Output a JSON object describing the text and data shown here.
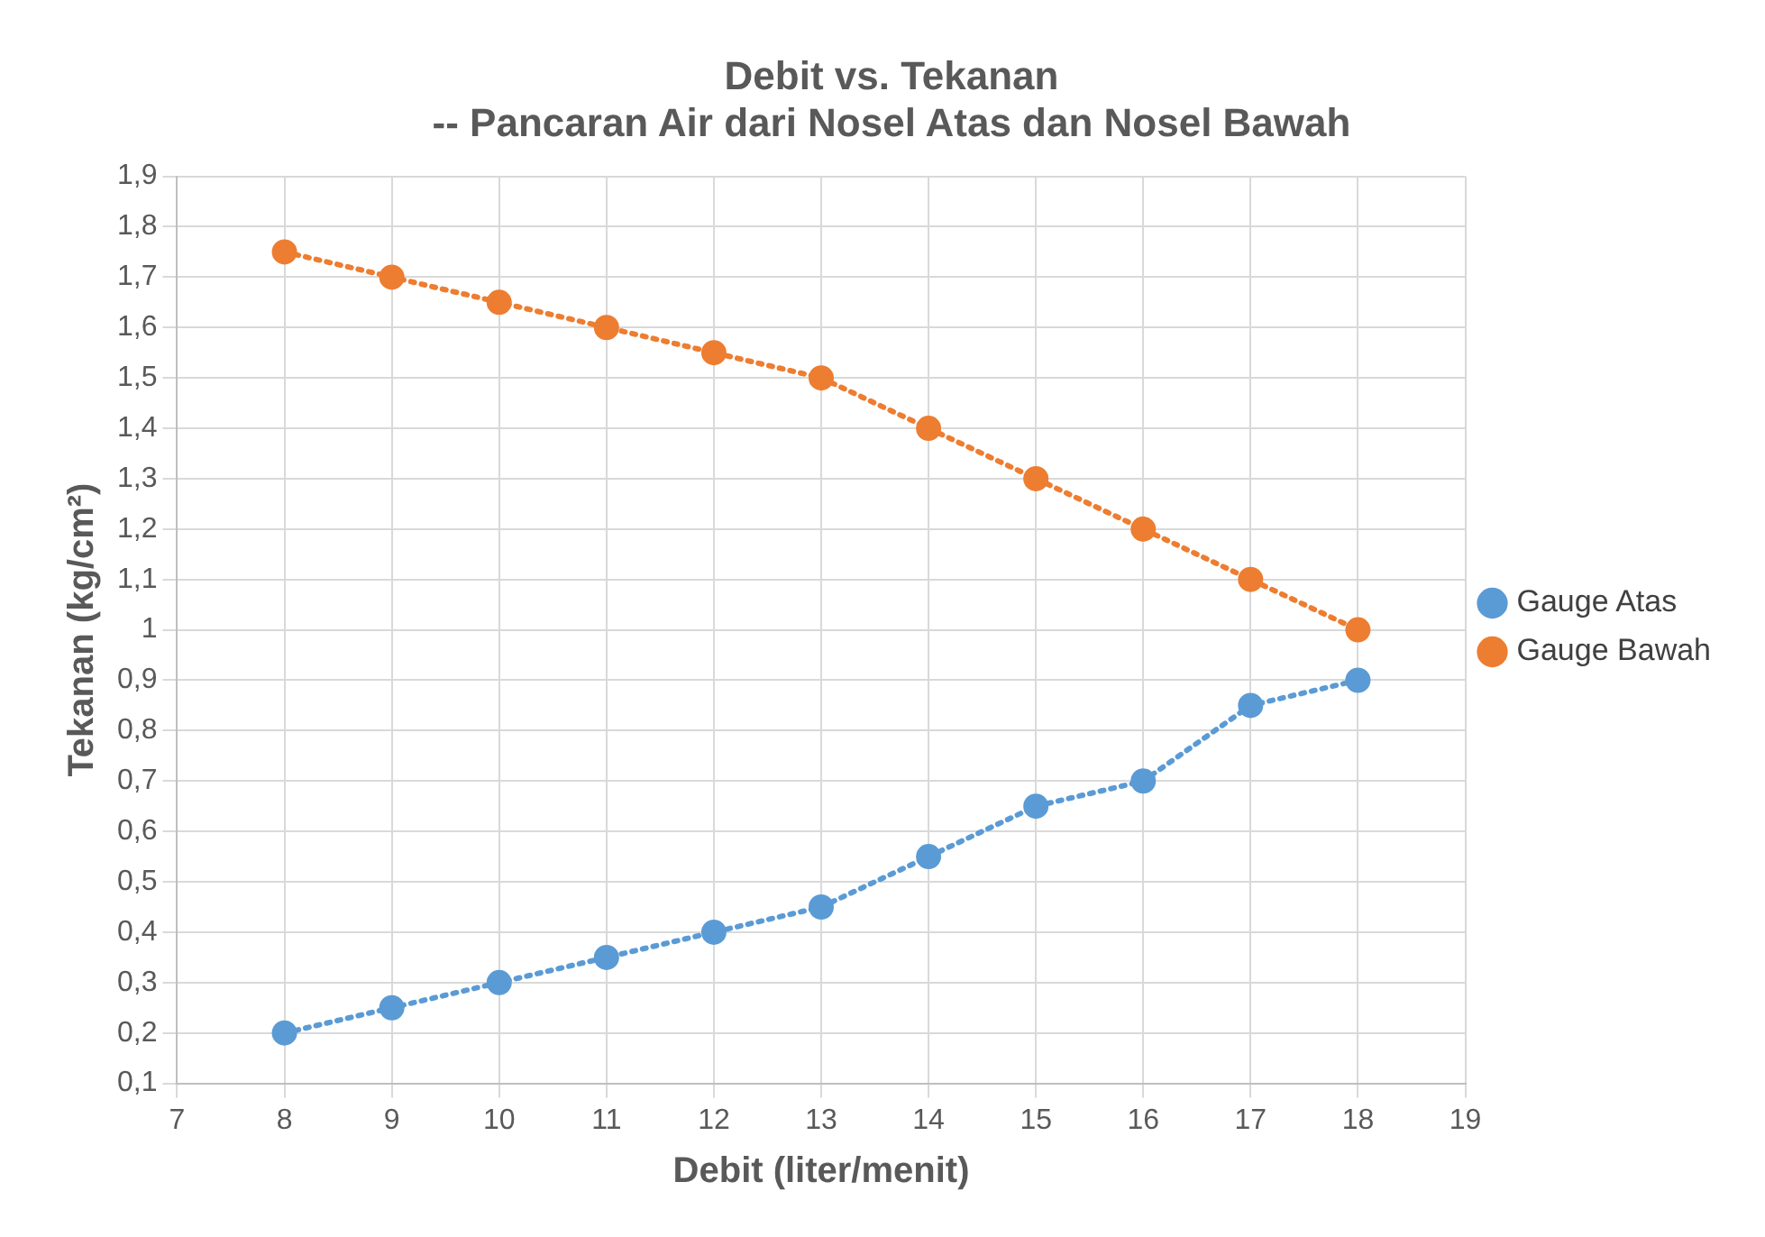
{
  "chart_data": {
    "type": "line",
    "title": "Debit vs. Tekanan",
    "subtitle": "-- Pancaran Air dari Nosel Atas dan Nosel Bawah",
    "xlabel": "Debit (liter/menit)",
    "ylabel": "Tekanan (kg/cm²)",
    "x": [
      8,
      9,
      10,
      11,
      12,
      13,
      14,
      15,
      16,
      17,
      18
    ],
    "series": [
      {
        "name": "Gauge Atas",
        "color": "#5b9bd5",
        "values": [
          0.2,
          0.25,
          0.3,
          0.35,
          0.4,
          0.45,
          0.55,
          0.65,
          0.7,
          0.85,
          0.9
        ]
      },
      {
        "name": "Gauge Bawah",
        "color": "#ed7d31",
        "values": [
          1.75,
          1.7,
          1.65,
          1.6,
          1.55,
          1.5,
          1.4,
          1.3,
          1.2,
          1.1,
          1.0
        ]
      }
    ],
    "xlim": [
      7,
      19
    ],
    "xticks": [
      7,
      8,
      9,
      10,
      11,
      12,
      13,
      14,
      15,
      16,
      17,
      18,
      19
    ],
    "ylim": [
      0.1,
      1.9
    ],
    "yticks": [
      {
        "value": 0.1,
        "label": "0,1"
      },
      {
        "value": 0.2,
        "label": "0,2"
      },
      {
        "value": 0.3,
        "label": "0,3"
      },
      {
        "value": 0.4,
        "label": "0,4"
      },
      {
        "value": 0.5,
        "label": "0,5"
      },
      {
        "value": 0.6,
        "label": "0,6"
      },
      {
        "value": 0.7,
        "label": "0,7"
      },
      {
        "value": 0.8,
        "label": "0,8"
      },
      {
        "value": 0.9,
        "label": "0,9"
      },
      1,
      {
        "value": 1.1,
        "label": "1,1"
      },
      {
        "value": 1.2,
        "label": "1,2"
      },
      {
        "value": 1.3,
        "label": "1,3"
      },
      {
        "value": 1.4,
        "label": "1,4"
      },
      {
        "value": 1.5,
        "label": "1,5"
      },
      {
        "value": 1.6,
        "label": "1,6"
      },
      {
        "value": 1.7,
        "label": "1,7"
      },
      {
        "value": 1.8,
        "label": "1,8"
      },
      {
        "value": 1.9,
        "label": "1,9"
      }
    ],
    "grid": true,
    "legend": "right",
    "marker": "circle",
    "line_style": "dotted"
  }
}
